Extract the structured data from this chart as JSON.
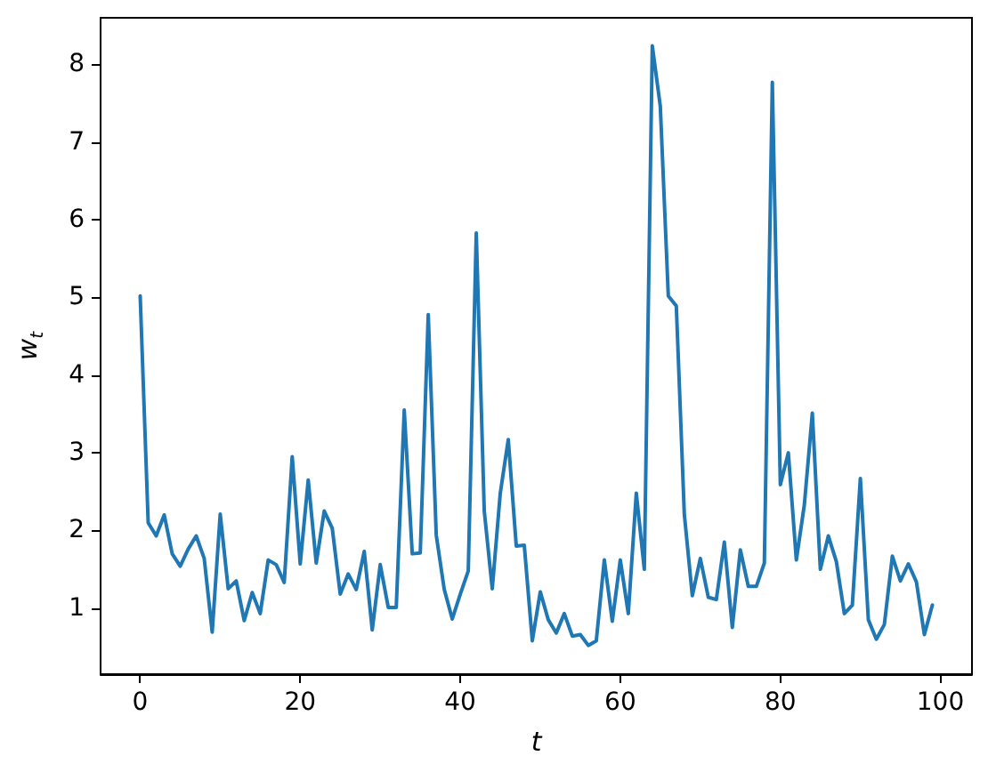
{
  "chart_data": {
    "type": "line",
    "xlabel": "t",
    "ylabel": "w$_{t}$",
    "color": "#1f77b4",
    "x": [
      0,
      1,
      2,
      3,
      4,
      5,
      6,
      7,
      8,
      9,
      10,
      11,
      12,
      13,
      14,
      15,
      16,
      17,
      18,
      19,
      20,
      21,
      22,
      23,
      24,
      25,
      26,
      27,
      28,
      29,
      30,
      31,
      32,
      33,
      34,
      35,
      36,
      37,
      38,
      39,
      40,
      41,
      42,
      43,
      44,
      45,
      46,
      47,
      48,
      49,
      50,
      51,
      52,
      53,
      54,
      55,
      56,
      57,
      58,
      59,
      60,
      61,
      62,
      63,
      64,
      65,
      66,
      67,
      68,
      69,
      70,
      71,
      72,
      73,
      74,
      75,
      76,
      77,
      78,
      79,
      80,
      81,
      82,
      83,
      84,
      85,
      86,
      87,
      88,
      89,
      90,
      91,
      92,
      93,
      94,
      95,
      96,
      97,
      98,
      99
    ],
    "values": [
      5.02,
      2.1,
      1.93,
      2.2,
      1.7,
      1.54,
      1.76,
      1.93,
      1.64,
      0.69,
      2.21,
      1.25,
      1.35,
      0.84,
      1.2,
      0.93,
      1.62,
      1.56,
      1.33,
      2.95,
      1.57,
      2.65,
      1.58,
      2.25,
      2.03,
      1.18,
      1.44,
      1.24,
      1.73,
      0.72,
      1.56,
      1.01,
      1.01,
      3.55,
      1.7,
      1.71,
      4.78,
      1.94,
      1.24,
      0.86,
      1.18,
      1.48,
      5.83,
      2.25,
      1.25,
      2.48,
      3.17,
      1.8,
      1.81,
      0.58,
      1.21,
      0.85,
      0.68,
      0.93,
      0.64,
      0.66,
      0.52,
      0.58,
      1.62,
      0.83,
      1.62,
      0.93,
      2.48,
      1.5,
      8.24,
      7.46,
      5.02,
      4.89,
      2.21,
      1.16,
      1.64,
      1.14,
      1.11,
      1.85,
      0.75,
      1.75,
      1.28,
      1.28,
      1.58,
      7.77,
      2.59,
      3.0,
      1.62,
      2.33,
      3.51,
      1.5,
      1.93,
      1.6,
      0.93,
      1.04,
      2.67,
      0.85,
      0.6,
      0.79,
      1.67,
      1.35,
      1.57,
      1.34,
      0.66,
      1.04
    ],
    "xlim": [
      -4.95,
      103.95
    ],
    "xticks": [
      0,
      20,
      40,
      60,
      80,
      100
    ],
    "ylim": [
      0.15,
      8.6
    ],
    "yticks": [
      1,
      2,
      3,
      4,
      5,
      6,
      7,
      8
    ]
  }
}
